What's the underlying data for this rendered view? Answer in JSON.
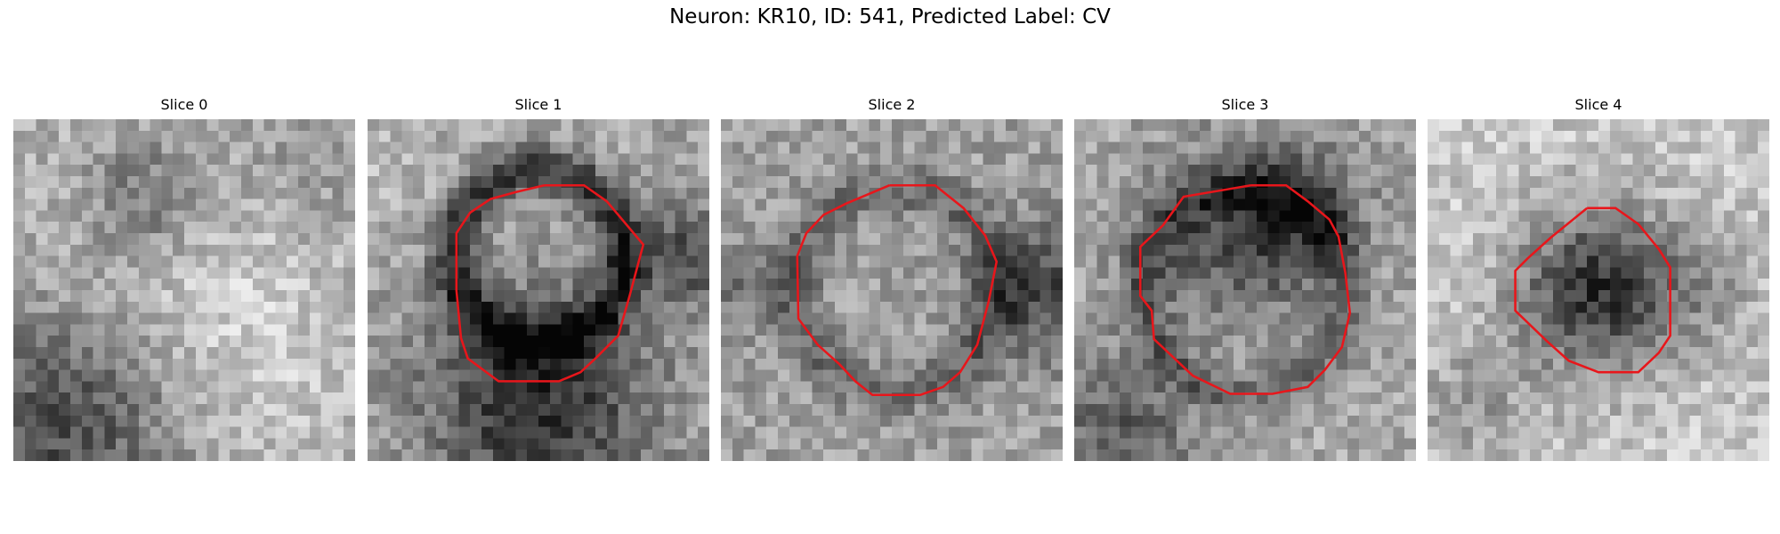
{
  "figure": {
    "title": "Neuron: KR10, ID: 541, Predicted Label: CV"
  },
  "panels": [
    {
      "title": "Slice 0",
      "has_contour": false
    },
    {
      "title": "Slice 1",
      "has_contour": true
    },
    {
      "title": "Slice 2",
      "has_contour": true
    },
    {
      "title": "Slice 3",
      "has_contour": true
    },
    {
      "title": "Slice 4",
      "has_contour": true
    }
  ],
  "colors": {
    "contour": "#e8161b",
    "background": "#ffffff"
  },
  "image_style": "grayscale-pixelated"
}
